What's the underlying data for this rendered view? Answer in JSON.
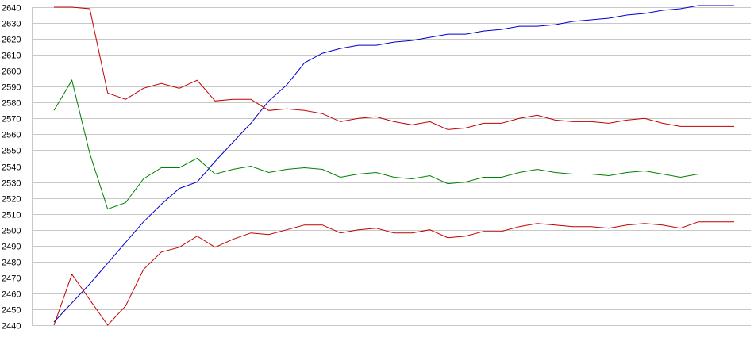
{
  "chart_data": {
    "type": "line",
    "title": "",
    "xlabel": "",
    "ylabel": "",
    "ylim": [
      2440,
      2640
    ],
    "yticks": [
      2440,
      2450,
      2460,
      2470,
      2480,
      2490,
      2500,
      2510,
      2520,
      2530,
      2540,
      2550,
      2560,
      2570,
      2580,
      2590,
      2600,
      2610,
      2620,
      2630,
      2640
    ],
    "ytick_labels": [
      "2440",
      "2450",
      "2460",
      "2470",
      "2480",
      "2490",
      "2500",
      "2510",
      "2520",
      "2530",
      "2540",
      "2550",
      "2560",
      "2570",
      "2580",
      "2590",
      "2600",
      "2610",
      "2620",
      "2630",
      "2640"
    ],
    "x": [
      1,
      2,
      3,
      4,
      5,
      6,
      7,
      8,
      9,
      10,
      11,
      12,
      13,
      14,
      15,
      16,
      17,
      18,
      19,
      20,
      21,
      22,
      23,
      24,
      25,
      26,
      27,
      28,
      29,
      30,
      31,
      32,
      33,
      34,
      35,
      36,
      37,
      38,
      39
    ],
    "xlim": [
      0,
      39
    ],
    "grid": true,
    "legend": "none",
    "series": [
      {
        "color": "#0000cc",
        "values": [
          2442,
          2454,
          2466,
          2479,
          2492,
          2505,
          2516,
          2526,
          2530,
          2543,
          2555,
          2567,
          2581,
          2591,
          2605,
          2611,
          2614,
          2616,
          2616,
          2618,
          2619,
          2621,
          2623,
          2623,
          2625,
          2626,
          2628,
          2628,
          2629,
          2631,
          2632,
          2633,
          2635,
          2636,
          2638,
          2639,
          2641,
          2641,
          2641
        ]
      },
      {
        "color": "#c00000",
        "values": [
          2640,
          2640,
          2639,
          2586,
          2582,
          2589,
          2592,
          2589,
          2594,
          2581,
          2582,
          2582,
          2575,
          2576,
          2575,
          2573,
          2568,
          2570,
          2571,
          2568,
          2566,
          2568,
          2563,
          2564,
          2567,
          2567,
          2570,
          2572,
          2569,
          2568,
          2568,
          2567,
          2569,
          2570,
          2567,
          2565,
          2565,
          2565,
          2565
        ]
      },
      {
        "color": "#008000",
        "values": [
          2575,
          2594,
          2548,
          2513,
          2517,
          2532,
          2539,
          2539,
          2545,
          2535,
          2538,
          2540,
          2536,
          2538,
          2539,
          2538,
          2533,
          2535,
          2536,
          2533,
          2532,
          2534,
          2529,
          2530,
          2533,
          2533,
          2536,
          2538,
          2536,
          2535,
          2535,
          2534,
          2536,
          2537,
          2535,
          2533,
          2535,
          2535,
          2535
        ]
      },
      {
        "color": "#c00000",
        "values": [
          2440,
          2472,
          2456,
          2440,
          2452,
          2475,
          2486,
          2489,
          2496,
          2489,
          2494,
          2498,
          2497,
          2500,
          2503,
          2503,
          2498,
          2500,
          2501,
          2498,
          2498,
          2500,
          2495,
          2496,
          2499,
          2499,
          2502,
          2504,
          2503,
          2502,
          2502,
          2501,
          2503,
          2504,
          2503,
          2501,
          2505,
          2505,
          2505
        ]
      }
    ]
  }
}
